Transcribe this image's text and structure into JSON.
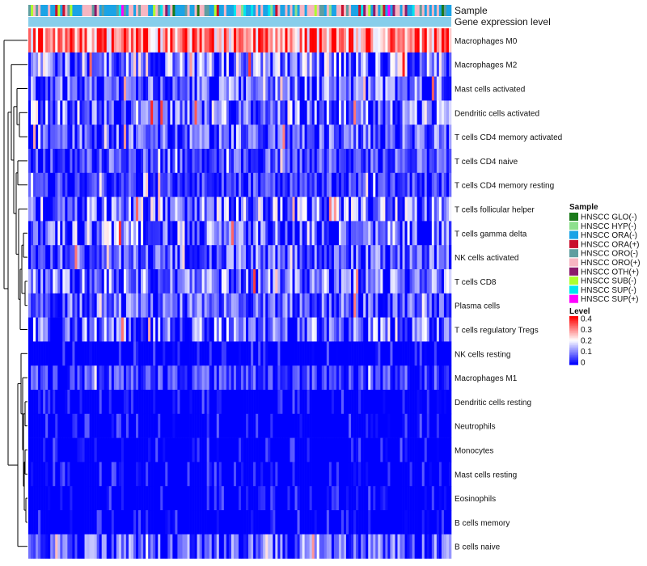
{
  "chart_data": {
    "type": "heatmap",
    "n_samples": 173,
    "annotation_tracks": [
      "Sample",
      "Gene expression level"
    ],
    "rows": [
      "Macrophages M0",
      "Macrophages M2",
      "Mast cells activated",
      "Dendritic cells activated",
      "T cells CD4 memory activated",
      "T cells CD4 naive",
      "T cells CD4 memory resting",
      "T cells follicular helper",
      "T cells gamma delta",
      "NK cells activated",
      "T cells CD8",
      "Plasma cells",
      "T cells regulatory  Tregs",
      "NK cells resting",
      "Macrophages M1",
      "Dendritic cells resting",
      "Neutrophils",
      "Monocytes",
      "Mast cells resting",
      "Eosinophils",
      "B cells memory",
      "B cells naive"
    ],
    "row_mean_levels": [
      0.3,
      0.1,
      0.08,
      0.1,
      0.07,
      0.06,
      0.05,
      0.1,
      0.1,
      0.07,
      0.09,
      0.07,
      0.09,
      0.02,
      0.05,
      0.01,
      0.02,
      0.02,
      0.02,
      0.01,
      0.01,
      0.07
    ],
    "sample_legend": {
      "title": "Sample",
      "items": [
        {
          "label": "HNSCC GLO(-)",
          "color": "#1a7a1a"
        },
        {
          "label": "HNSCC HYP(-)",
          "color": "#8de08d"
        },
        {
          "label": "HNSCC ORA(-)",
          "color": "#1aa3e6"
        },
        {
          "label": "HNSCC ORA(+)",
          "color": "#c8102e"
        },
        {
          "label": "HNSCC ORO(-)",
          "color": "#5f9ea0"
        },
        {
          "label": "HNSCC ORO(+)",
          "color": "#f7b6c2"
        },
        {
          "label": "HNSCC OTH(+)",
          "color": "#8b1a6b"
        },
        {
          "label": "HNSCC SUB(-)",
          "color": "#adff2f"
        },
        {
          "label": "HNSCC SUP(-)",
          "color": "#00e5ee"
        },
        {
          "label": "HNSCC SUP(+)",
          "color": "#ff00ff"
        }
      ]
    },
    "level_legend": {
      "title": "Level",
      "ticks": [
        "0.4",
        "0.3",
        "0.2",
        "0.1",
        "0"
      ],
      "range": [
        0,
        0.4
      ],
      "colors": [
        "#0000ff",
        "#ffffff",
        "#ff0000"
      ]
    },
    "gene_expression_color": "#87ceeb"
  }
}
